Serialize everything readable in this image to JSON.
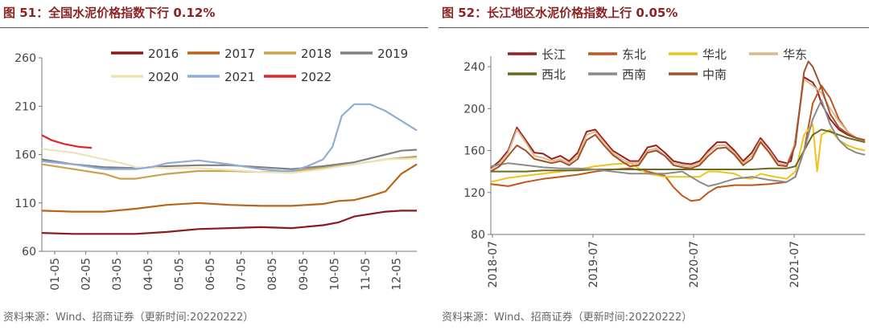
{
  "left": {
    "title": "图 51：全国水泥价格指数下行 0.12%",
    "source": "资料来源：Wind、招商证券（更新时间:20220222）"
  },
  "right": {
    "title": "图 52：长江地区水泥价格指数上行 0.05%",
    "source": "资料来源：Wind、招商证券（更新时间:20220222）"
  },
  "chart_data": [
    {
      "type": "line",
      "title": "全国水泥价格指数下行 0.12%",
      "xlabel": "",
      "ylabel": "",
      "ylim": [
        60,
        260
      ],
      "yticks": [
        60,
        110,
        160,
        210,
        260
      ],
      "xticks": [
        "01-05",
        "02-05",
        "03-05",
        "04-05",
        "05-05",
        "06-05",
        "07-05",
        "08-05",
        "09-05",
        "10-05",
        "11-05",
        "12-05"
      ],
      "xlim": [
        0,
        12
      ],
      "grid": false,
      "legend_position": "top",
      "series": [
        {
          "name": "2016",
          "color": "#8b1a1a",
          "x": [
            0,
            1,
            2,
            3,
            4,
            5,
            6,
            7,
            8,
            9,
            9.5,
            10,
            11,
            11.5,
            12
          ],
          "values": [
            79,
            78,
            78,
            78,
            80,
            83,
            84,
            85,
            84,
            87,
            90,
            96,
            101,
            102,
            102
          ]
        },
        {
          "name": "2017",
          "color": "#b8651b",
          "x": [
            0,
            1,
            2,
            3,
            4,
            5,
            6,
            7,
            8,
            9,
            9.5,
            10,
            10.5,
            11,
            11.5,
            12
          ],
          "values": [
            102,
            101,
            101,
            104,
            108,
            110,
            108,
            107,
            107,
            109,
            112,
            113,
            117,
            122,
            140,
            150
          ]
        },
        {
          "name": "2018",
          "color": "#c8a34e",
          "x": [
            0,
            1,
            2,
            2.5,
            3,
            4,
            5,
            6,
            7,
            8,
            9,
            10,
            11,
            12
          ],
          "values": [
            150,
            145,
            140,
            135,
            135,
            140,
            143,
            143,
            142,
            143,
            146,
            150,
            155,
            158
          ]
        },
        {
          "name": "2019",
          "color": "#808080",
          "x": [
            0,
            1,
            2,
            3,
            4,
            5,
            6,
            7,
            8,
            9,
            10,
            11,
            11.5,
            12
          ],
          "values": [
            155,
            150,
            147,
            146,
            148,
            149,
            149,
            147,
            145,
            148,
            152,
            160,
            164,
            165
          ]
        },
        {
          "name": "2020",
          "color": "#ede3b8",
          "x": [
            0,
            1,
            2,
            2.7,
            3,
            4,
            5,
            6,
            7,
            8,
            9,
            10,
            11,
            12
          ],
          "values": [
            166,
            162,
            155,
            150,
            147,
            146,
            146,
            144,
            142,
            141,
            145,
            150,
            155,
            156
          ]
        },
        {
          "name": "2021",
          "color": "#8fadd8",
          "x": [
            0,
            1,
            2,
            3,
            3.5,
            4,
            5,
            6,
            7,
            7.7,
            8,
            8.5,
            9,
            9.3,
            9.6,
            10,
            10.5,
            11,
            11.5,
            12
          ],
          "values": [
            153,
            150,
            145,
            145,
            147,
            151,
            154,
            150,
            145,
            143,
            143,
            148,
            155,
            168,
            200,
            212,
            212,
            205,
            195,
            185
          ]
        },
        {
          "name": "2022",
          "color": "#e3262c",
          "x": [
            0,
            0.3,
            0.7,
            1.2,
            1.6
          ],
          "values": [
            180,
            175,
            171,
            168,
            167
          ]
        }
      ]
    },
    {
      "type": "line",
      "title": "长江地区水泥价格指数上行 0.05%",
      "xlabel": "",
      "ylabel": "",
      "ylim": [
        80,
        250
      ],
      "yticks": [
        80,
        120,
        160,
        200,
        240
      ],
      "xticks": [
        "2018-07",
        "2019-07",
        "2020-07",
        "2021-07"
      ],
      "xlim": [
        0,
        43
      ],
      "grid": false,
      "legend_position": "top",
      "series": [
        {
          "name": "长江",
          "color": "#9c1f1f",
          "x": [
            0,
            1,
            2,
            3,
            4,
            5,
            6,
            7,
            8,
            9,
            10,
            11,
            12,
            13,
            14,
            15,
            16,
            17,
            18,
            19,
            20,
            21,
            22,
            23,
            24,
            25,
            26,
            27,
            28,
            29,
            30,
            31,
            32,
            33,
            34,
            34.5,
            35,
            36,
            37,
            37.5,
            38,
            39,
            40,
            41,
            42,
            43
          ],
          "values": [
            143,
            150,
            160,
            182,
            170,
            158,
            157,
            152,
            155,
            150,
            158,
            178,
            180,
            170,
            160,
            155,
            150,
            150,
            163,
            165,
            158,
            150,
            148,
            147,
            150,
            160,
            168,
            168,
            160,
            150,
            158,
            172,
            162,
            150,
            148,
            150,
            170,
            230,
            225,
            218,
            205,
            190,
            180,
            175,
            172,
            170
          ]
        },
        {
          "name": "东北",
          "color": "#c0561c",
          "x": [
            0,
            2,
            4,
            6,
            8,
            10,
            12,
            14,
            16,
            18,
            20,
            21,
            22,
            23,
            24,
            25,
            26,
            28,
            30,
            32,
            34,
            35,
            36,
            37,
            38,
            39,
            40,
            41,
            42,
            43
          ],
          "values": [
            128,
            126,
            130,
            133,
            135,
            137,
            140,
            142,
            143,
            140,
            136,
            125,
            117,
            112,
            113,
            120,
            125,
            127,
            127,
            128,
            130,
            135,
            160,
            205,
            222,
            210,
            190,
            178,
            172,
            168
          ]
        },
        {
          "name": "华北",
          "color": "#f2c21c",
          "x": [
            0,
            2,
            4,
            6,
            8,
            10,
            12,
            14,
            16,
            17,
            18,
            20,
            22,
            24,
            25,
            26,
            28,
            29,
            30,
            31,
            32,
            34,
            35,
            36,
            36.5,
            37,
            37.5,
            38,
            39,
            40,
            41,
            42,
            43
          ],
          "values": [
            130,
            134,
            136,
            138,
            140,
            142,
            145,
            147,
            148,
            143,
            138,
            135,
            135,
            135,
            140,
            140,
            138,
            134,
            133,
            138,
            136,
            133,
            140,
            175,
            180,
            185,
            140,
            175,
            180,
            170,
            165,
            162,
            160
          ]
        },
        {
          "name": "华东",
          "color": "#dcb98a",
          "x": [
            0,
            1,
            2,
            3,
            4,
            5,
            6,
            7,
            8,
            9,
            10,
            11,
            12,
            13,
            14,
            15,
            16,
            17,
            18,
            19,
            20,
            21,
            22,
            23,
            24,
            25,
            26,
            27,
            28,
            29,
            30,
            31,
            32,
            33,
            34,
            35,
            36,
            37,
            38,
            39,
            40,
            41,
            42,
            43
          ],
          "values": [
            142,
            148,
            158,
            180,
            168,
            155,
            153,
            150,
            152,
            148,
            155,
            175,
            178,
            168,
            158,
            152,
            148,
            148,
            160,
            162,
            155,
            148,
            146,
            145,
            148,
            158,
            165,
            165,
            158,
            148,
            155,
            170,
            160,
            148,
            146,
            168,
            228,
            222,
            215,
            200,
            188,
            178,
            172,
            168
          ]
        },
        {
          "name": "西北",
          "color": "#6b6b1f",
          "x": [
            0,
            2,
            4,
            6,
            8,
            10,
            12,
            14,
            16,
            18,
            20,
            22,
            24,
            26,
            28,
            30,
            32,
            34,
            35,
            36,
            37,
            38,
            39,
            40,
            41,
            42,
            43
          ],
          "values": [
            140,
            140,
            140,
            141,
            141,
            141,
            142,
            142,
            142,
            142,
            142,
            142,
            142,
            142,
            142,
            142,
            143,
            143,
            145,
            160,
            175,
            180,
            178,
            175,
            172,
            170,
            168
          ]
        },
        {
          "name": "西南",
          "color": "#8a8a8a",
          "x": [
            0,
            2,
            4,
            6,
            8,
            10,
            12,
            14,
            16,
            18,
            20,
            22,
            24,
            25,
            26,
            28,
            30,
            32,
            34,
            35,
            36,
            37,
            38,
            39,
            40,
            41,
            42,
            43
          ],
          "values": [
            145,
            148,
            146,
            144,
            143,
            143,
            142,
            140,
            138,
            138,
            138,
            140,
            130,
            126,
            128,
            133,
            135,
            132,
            130,
            135,
            160,
            190,
            208,
            185,
            170,
            162,
            158,
            156
          ]
        },
        {
          "name": "中南",
          "color": "#a0522d",
          "x": [
            0,
            1,
            2,
            3,
            4,
            5,
            6,
            7,
            8,
            9,
            10,
            11,
            12,
            13,
            14,
            15,
            16,
            17,
            18,
            19,
            20,
            21,
            22,
            23,
            24,
            25,
            26,
            27,
            28,
            29,
            30,
            31,
            32,
            33,
            34,
            35,
            36,
            36.5,
            37,
            38,
            39,
            40,
            41,
            42,
            43
          ],
          "values": [
            140,
            145,
            155,
            165,
            160,
            152,
            150,
            148,
            150,
            146,
            152,
            170,
            175,
            165,
            156,
            150,
            145,
            146,
            158,
            160,
            155,
            146,
            144,
            143,
            146,
            155,
            162,
            163,
            156,
            146,
            152,
            168,
            158,
            146,
            145,
            165,
            235,
            245,
            240,
            220,
            195,
            182,
            176,
            172,
            170
          ]
        }
      ]
    }
  ]
}
